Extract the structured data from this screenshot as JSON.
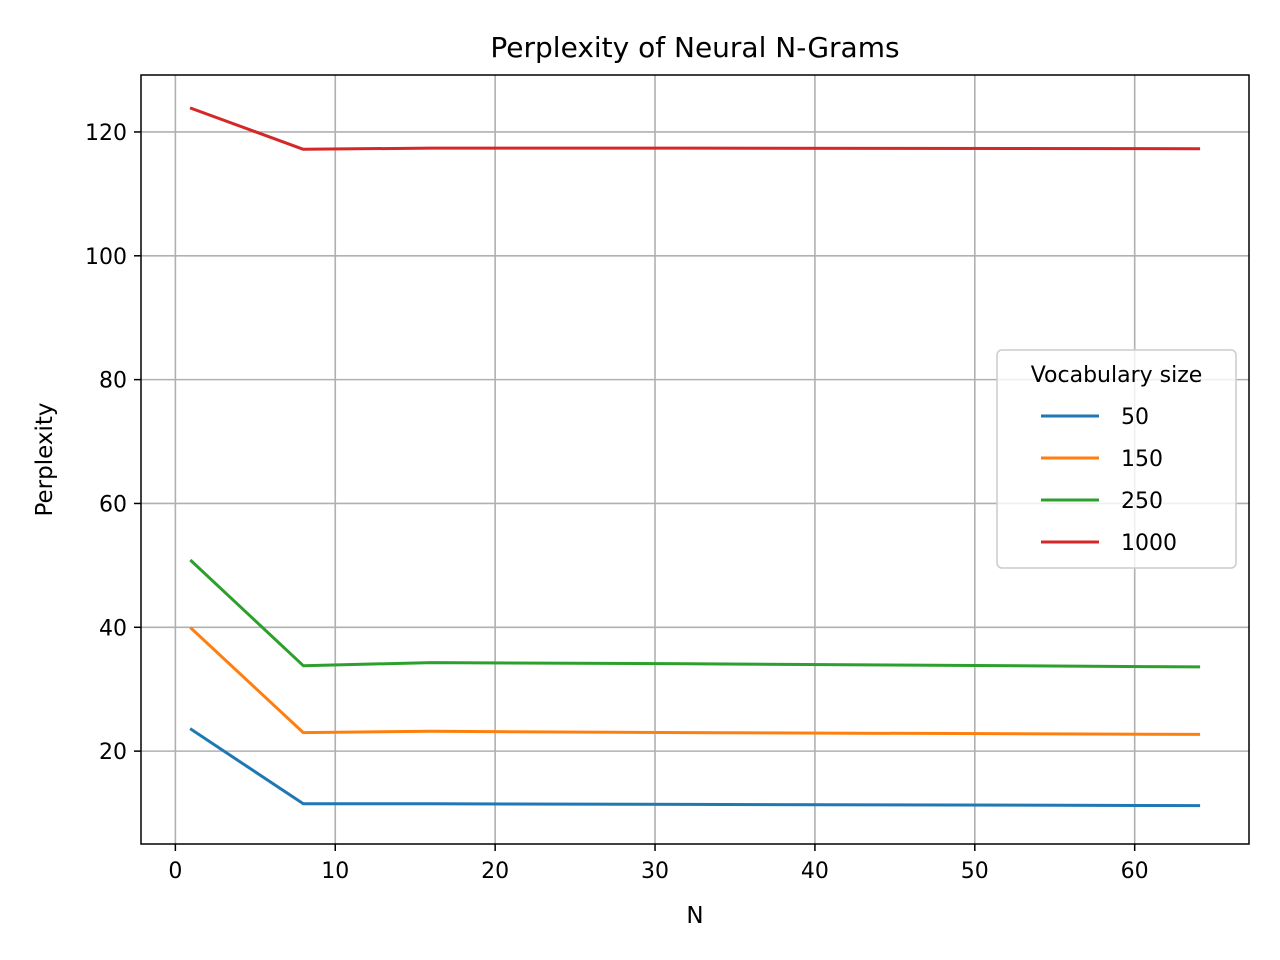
{
  "chart_data": {
    "type": "line",
    "title": "Perplexity of Neural N-Grams",
    "xlabel": "N",
    "ylabel": "Perplexity",
    "xlim": [
      -2.15,
      67.15
    ],
    "ylim": [
      5.0,
      129.2
    ],
    "xticks": [
      0,
      10,
      20,
      30,
      40,
      50,
      60
    ],
    "yticks": [
      20,
      40,
      60,
      80,
      100,
      120
    ],
    "grid": true,
    "legend": {
      "title": "Vocabulary size",
      "placement": "center-right"
    },
    "x": [
      1,
      8,
      16,
      32,
      64
    ],
    "series": [
      {
        "name": "50",
        "color": "#1f77b4",
        "values": [
          23.5,
          11.5,
          11.5,
          11.4,
          11.2
        ]
      },
      {
        "name": "150",
        "color": "#ff7f0e",
        "values": [
          39.8,
          23.0,
          23.2,
          23.0,
          22.7
        ]
      },
      {
        "name": "250",
        "color": "#2ca02c",
        "values": [
          50.7,
          33.8,
          34.3,
          34.1,
          33.6
        ]
      },
      {
        "name": "1000",
        "color": "#d62728",
        "values": [
          123.8,
          117.2,
          117.4,
          117.4,
          117.3
        ]
      }
    ]
  }
}
